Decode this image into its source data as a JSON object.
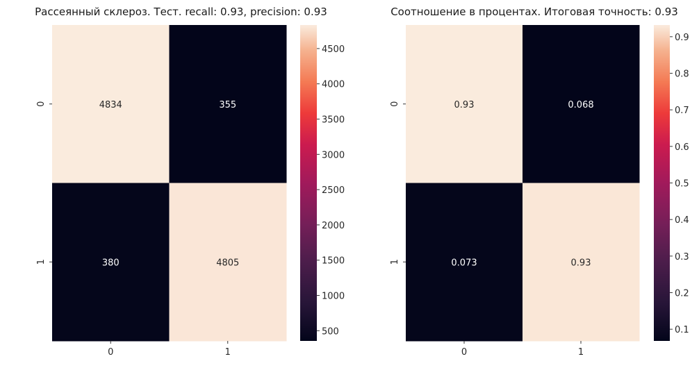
{
  "chart_data": [
    {
      "type": "heatmap",
      "title": "Рассеянный склероз. Тест. recall: 0.93, precision: 0.93",
      "xlabel": "",
      "ylabel": "",
      "x_tick_labels": [
        "0",
        "1"
      ],
      "y_tick_labels": [
        "0",
        "1"
      ],
      "values": [
        [
          4834,
          355
        ],
        [
          380,
          4805
        ]
      ],
      "cell_labels": [
        [
          "4834",
          "355"
        ],
        [
          "380",
          "4805"
        ]
      ],
      "colormap": "rocket",
      "colorbar": {
        "range": [
          355,
          4834
        ],
        "ticks": [
          500,
          1000,
          1500,
          2000,
          2500,
          3000,
          3500,
          4000,
          4500
        ],
        "tick_labels": [
          "500",
          "1000",
          "1500",
          "2000",
          "2500",
          "3000",
          "3500",
          "4000",
          "4500"
        ]
      },
      "grid": false
    },
    {
      "type": "heatmap",
      "title": "Соотношение в процентах. Итоговая точность: 0.93",
      "xlabel": "",
      "ylabel": "",
      "x_tick_labels": [
        "0",
        "1"
      ],
      "y_tick_labels": [
        "0",
        "1"
      ],
      "values": [
        [
          0.932,
          0.068
        ],
        [
          0.073,
          0.927
        ]
      ],
      "cell_labels": [
        [
          "0.93",
          "0.068"
        ],
        [
          "0.073",
          "0.93"
        ]
      ],
      "colormap": "rocket",
      "colorbar": {
        "range": [
          0.068,
          0.932
        ],
        "ticks": [
          0.1,
          0.2,
          0.3,
          0.4,
          0.5,
          0.6,
          0.7,
          0.8,
          0.9
        ],
        "tick_labels": [
          "0.1",
          "0.2",
          "0.3",
          "0.4",
          "0.5",
          "0.6",
          "0.7",
          "0.8",
          "0.9"
        ]
      },
      "grid": false
    }
  ]
}
